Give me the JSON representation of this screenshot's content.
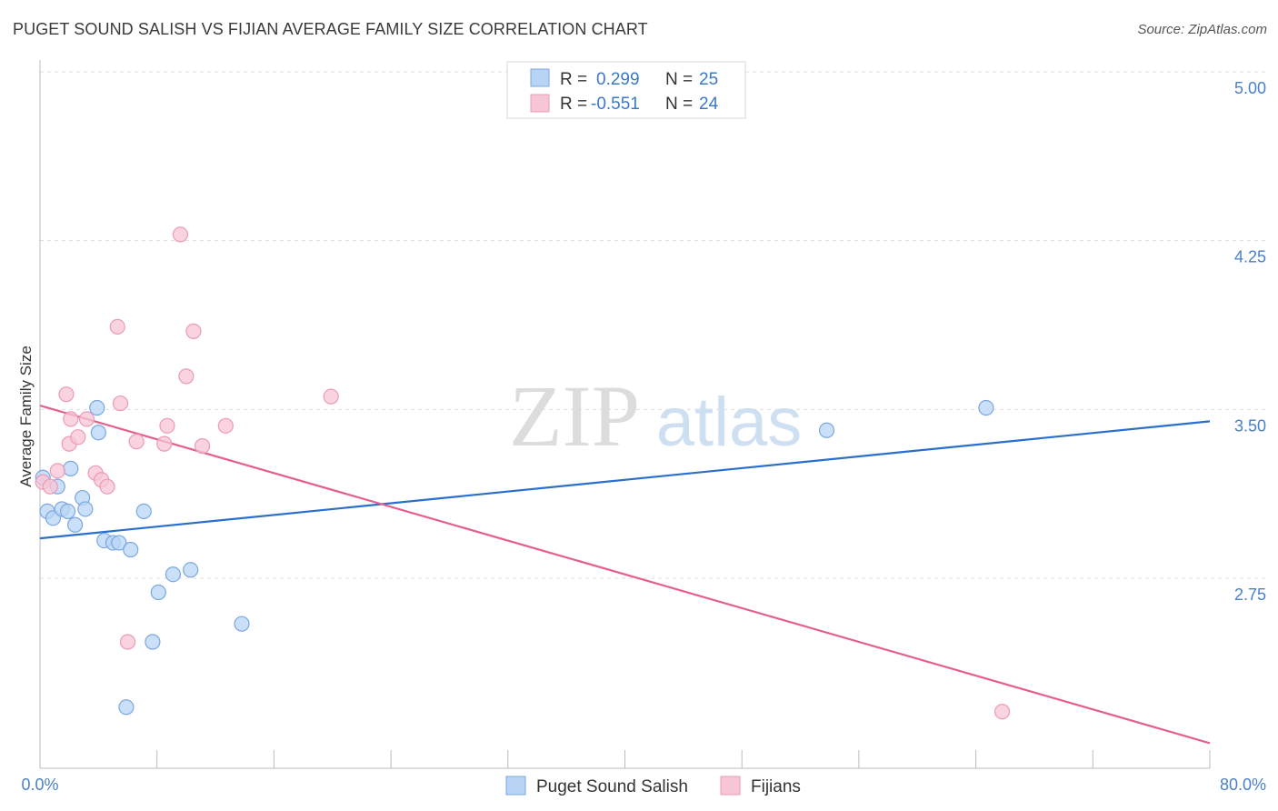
{
  "title": "PUGET SOUND SALISH VS FIJIAN AVERAGE FAMILY SIZE CORRELATION CHART",
  "source": "Source: ZipAtlas.com",
  "watermark": {
    "zip": "ZIP",
    "atlas": "atlas"
  },
  "legend_box": {
    "rows": [
      {
        "r_label": "R =",
        "r_value": "0.299",
        "n_label": "N =",
        "n_value": "25"
      },
      {
        "r_label": "R =",
        "r_value": "-0.551",
        "n_label": "N =",
        "n_value": "24"
      }
    ]
  },
  "colors": {
    "series_a": "#4a86d4",
    "series_a_fill": "#b8d4f5",
    "series_b": "#e8739c",
    "series_b_fill": "#f7c6d6",
    "axis_label": "#4a7fc9",
    "grid": "#dddddd"
  },
  "chart_data": {
    "type": "scatter",
    "title": "PUGET SOUND SALISH VS FIJIAN AVERAGE FAMILY SIZE CORRELATION CHART",
    "xlabel": "",
    "ylabel": "Average Family Size",
    "x_tick_labels": [
      "0.0%",
      "80.0%"
    ],
    "xlim": [
      0,
      80
    ],
    "ylim": [
      2.23,
      5.07
    ],
    "y_ticks": [
      2.75,
      3.5,
      4.25,
      5.0
    ],
    "y_tick_labels": [
      "2.75",
      "3.50",
      "4.25",
      "5.00"
    ],
    "grid": true,
    "legend_position": "top-center",
    "series": [
      {
        "name": "Puget Sound Salish",
        "points": [
          [
            0.2,
            3.27
          ],
          [
            0.5,
            3.12
          ],
          [
            0.9,
            3.09
          ],
          [
            1.2,
            3.23
          ],
          [
            1.5,
            3.13
          ],
          [
            1.9,
            3.12
          ],
          [
            2.1,
            3.31
          ],
          [
            2.4,
            3.06
          ],
          [
            2.9,
            3.18
          ],
          [
            3.1,
            3.13
          ],
          [
            3.9,
            3.58
          ],
          [
            4.0,
            3.47
          ],
          [
            4.4,
            2.99
          ],
          [
            5.0,
            2.98
          ],
          [
            5.4,
            2.98
          ],
          [
            5.9,
            2.25
          ],
          [
            6.2,
            2.95
          ],
          [
            7.1,
            3.12
          ],
          [
            7.7,
            2.54
          ],
          [
            8.1,
            2.76
          ],
          [
            9.1,
            2.84
          ],
          [
            10.3,
            2.86
          ],
          [
            13.8,
            2.62
          ],
          [
            53.8,
            3.48
          ],
          [
            64.7,
            3.58
          ]
        ],
        "trend": {
          "x0": 0,
          "y0": 3.0,
          "x1": 80,
          "y1": 3.52
        }
      },
      {
        "name": "Fijians",
        "points": [
          [
            0.2,
            3.25
          ],
          [
            0.7,
            3.23
          ],
          [
            1.2,
            3.3
          ],
          [
            1.8,
            3.64
          ],
          [
            2.0,
            3.42
          ],
          [
            2.1,
            3.53
          ],
          [
            2.6,
            3.45
          ],
          [
            3.2,
            3.53
          ],
          [
            3.8,
            3.29
          ],
          [
            4.2,
            3.26
          ],
          [
            4.6,
            3.23
          ],
          [
            5.3,
            3.94
          ],
          [
            5.5,
            3.6
          ],
          [
            6.0,
            2.54
          ],
          [
            6.6,
            3.43
          ],
          [
            8.5,
            3.42
          ],
          [
            8.7,
            3.5
          ],
          [
            9.6,
            4.35
          ],
          [
            10.0,
            3.72
          ],
          [
            10.5,
            3.92
          ],
          [
            11.1,
            3.41
          ],
          [
            12.7,
            3.5
          ],
          [
            19.9,
            3.63
          ],
          [
            65.8,
            2.23
          ]
        ],
        "trend": {
          "x0": 0,
          "y0": 3.59,
          "x1": 80,
          "y1": 2.09
        }
      }
    ]
  },
  "bottom_legend": [
    "Puget Sound Salish",
    "Fijians"
  ]
}
